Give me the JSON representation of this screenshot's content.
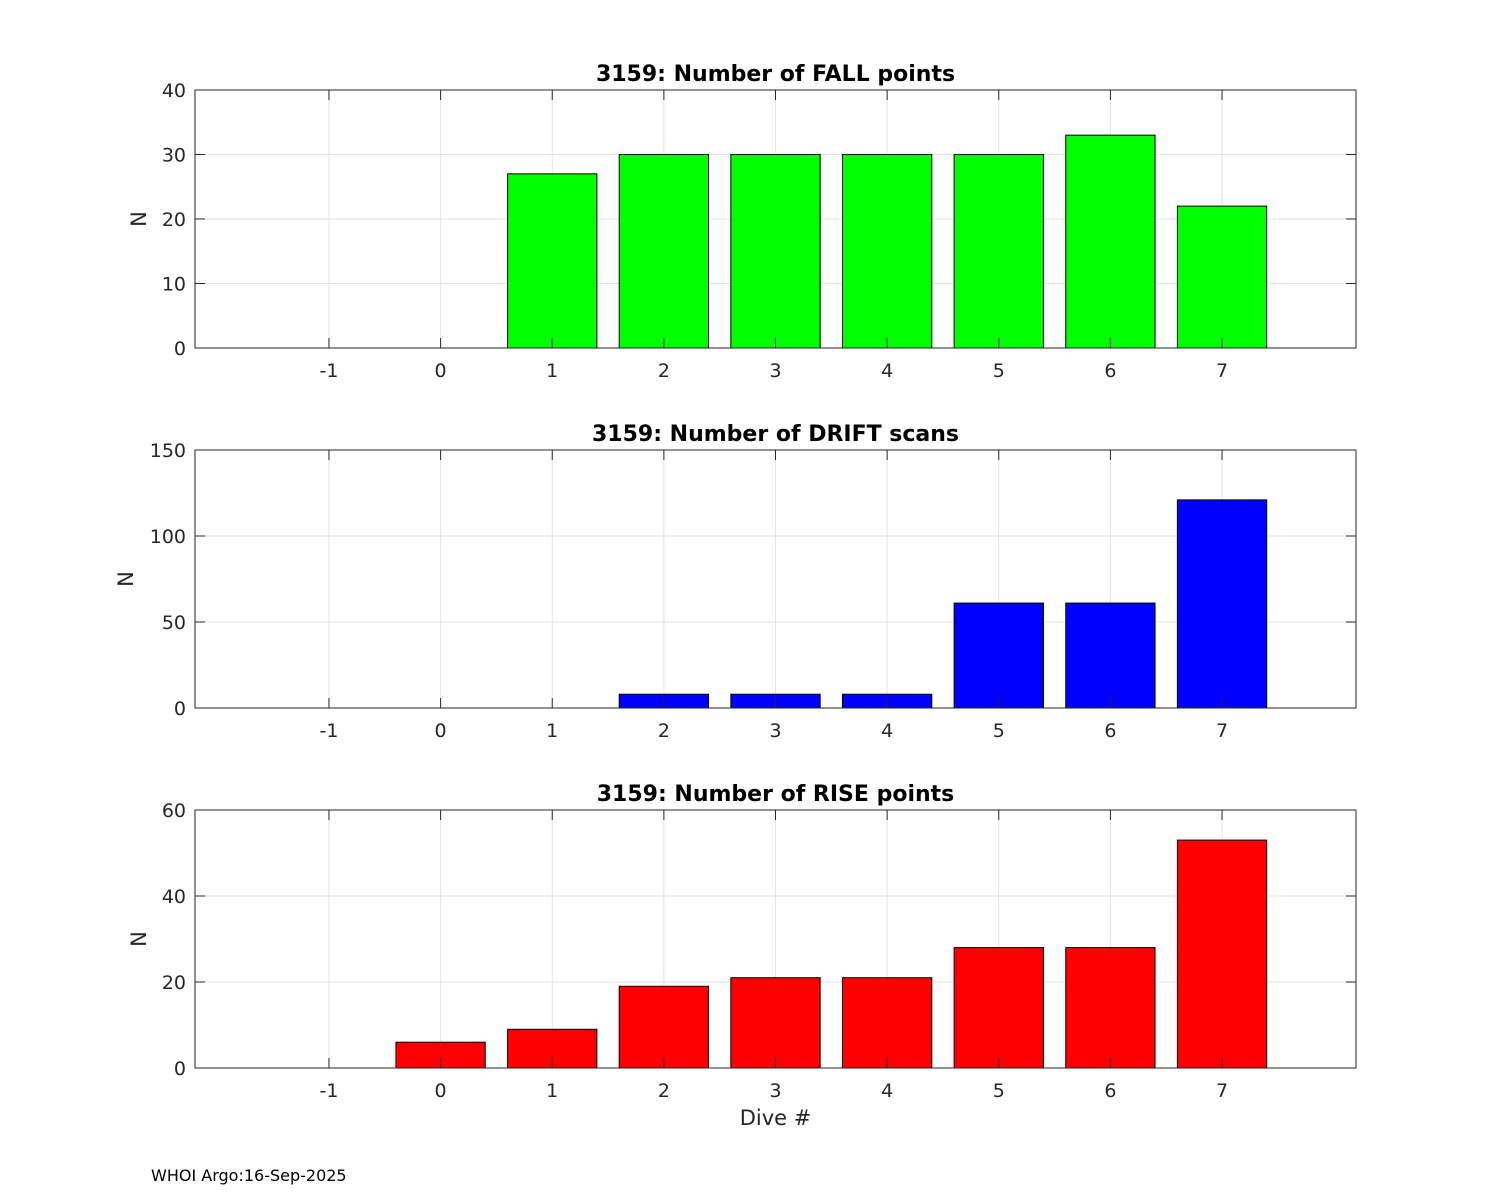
{
  "footer": "WHOI Argo:16-Sep-2025",
  "chart_data": [
    {
      "type": "bar",
      "title": "3159: Number of FALL points",
      "xlabel": "",
      "ylabel": "N",
      "categories": [
        -1,
        0,
        1,
        2,
        3,
        4,
        5,
        6,
        7
      ],
      "values": [
        0,
        0,
        27,
        30,
        30,
        30,
        30,
        33,
        22
      ],
      "color": "#00ff00",
      "xlim": [
        -2.2,
        8.2
      ],
      "ylim": [
        0,
        40
      ],
      "yticks": [
        0,
        10,
        20,
        30,
        40
      ],
      "grid": true
    },
    {
      "type": "bar",
      "title": "3159: Number of DRIFT scans",
      "xlabel": "",
      "ylabel": "N",
      "categories": [
        -1,
        0,
        1,
        2,
        3,
        4,
        5,
        6,
        7
      ],
      "values": [
        0,
        0,
        0,
        8,
        8,
        8,
        61,
        61,
        121
      ],
      "color": "#0000ff",
      "xlim": [
        -2.2,
        8.2
      ],
      "ylim": [
        0,
        150
      ],
      "yticks": [
        0,
        50,
        100,
        150
      ],
      "grid": true
    },
    {
      "type": "bar",
      "title": "3159: Number of RISE points",
      "xlabel": "Dive #",
      "ylabel": "N",
      "categories": [
        -1,
        0,
        1,
        2,
        3,
        4,
        5,
        6,
        7
      ],
      "values": [
        0,
        6,
        9,
        19,
        21,
        21,
        28,
        28,
        53
      ],
      "color": "#ff0000",
      "xlim": [
        -2.2,
        8.2
      ],
      "ylim": [
        0,
        60
      ],
      "yticks": [
        0,
        20,
        40,
        60
      ],
      "grid": true
    }
  ]
}
